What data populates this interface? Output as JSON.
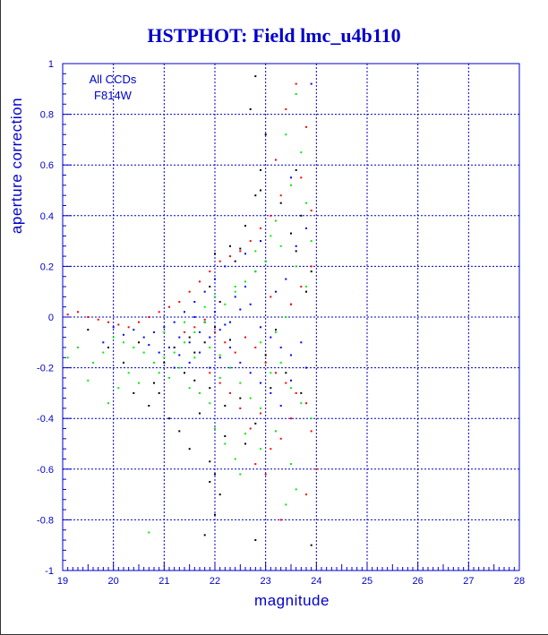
{
  "chart_data": {
    "type": "scatter",
    "title": "HSTPHOT: Field lmc_u4b110",
    "xlabel": "magnitude",
    "ylabel": "aperture correction",
    "xlim": [
      19,
      28
    ],
    "ylim": [
      -1,
      1
    ],
    "x_ticks": [
      "19",
      "20",
      "21",
      "22",
      "23",
      "24",
      "25",
      "26",
      "27",
      "28"
    ],
    "y_ticks": [
      "1",
      "0.8",
      "0.6",
      "0.4",
      "0.2",
      "0",
      "-0.2",
      "-0.4",
      "-0.6",
      "-0.8",
      "-1"
    ],
    "grid": true,
    "annotations": [
      "All CCDs",
      "F814W"
    ],
    "colors": {
      "axis": "#0000cc",
      "grid": "#0000cc",
      "text": "#0000cc"
    },
    "series": [
      {
        "color": "#000000",
        "points": [
          [
            22.8,
            0.95
          ],
          [
            22.7,
            0.82
          ],
          [
            23.0,
            0.72
          ],
          [
            22.9,
            0.58
          ],
          [
            22.9,
            0.5
          ],
          [
            22.8,
            0.48
          ],
          [
            23.3,
            0.45
          ],
          [
            22.6,
            0.36
          ],
          [
            23.5,
            0.33
          ],
          [
            22.3,
            0.28
          ],
          [
            22.5,
            0.27
          ],
          [
            23.6,
            0.26
          ],
          [
            22.0,
            0.25
          ],
          [
            22.4,
            0.22
          ],
          [
            21.9,
            0.12
          ],
          [
            22.1,
            0.06
          ],
          [
            21.8,
            -0.02
          ],
          [
            21.5,
            -0.08
          ],
          [
            21.2,
            -0.12
          ],
          [
            21.0,
            -0.18
          ],
          [
            21.4,
            -0.22
          ],
          [
            21.6,
            -0.25
          ],
          [
            21.9,
            -0.28
          ],
          [
            20.8,
            -0.26
          ],
          [
            20.9,
            -0.3
          ],
          [
            20.7,
            -0.35
          ],
          [
            21.1,
            -0.4
          ],
          [
            21.3,
            -0.45
          ],
          [
            21.7,
            -0.38
          ],
          [
            22.2,
            -0.35
          ],
          [
            22.5,
            -0.32
          ],
          [
            22.8,
            -0.42
          ],
          [
            23.1,
            -0.28
          ],
          [
            23.4,
            -0.22
          ],
          [
            23.7,
            -0.3
          ],
          [
            21.5,
            -0.52
          ],
          [
            21.9,
            -0.57
          ],
          [
            22.0,
            -0.62
          ],
          [
            21.9,
            -0.65
          ],
          [
            22.1,
            -0.7
          ],
          [
            22.0,
            -0.78
          ],
          [
            21.8,
            -0.86
          ],
          [
            22.8,
            -0.88
          ],
          [
            23.9,
            -0.9
          ],
          [
            22.2,
            -0.47
          ],
          [
            22.6,
            -0.5
          ],
          [
            19.5,
            -0.05
          ],
          [
            19.9,
            -0.12
          ],
          [
            20.2,
            -0.18
          ],
          [
            20.5,
            -0.1
          ],
          [
            20.4,
            -0.3
          ],
          [
            21.6,
            -0.14
          ],
          [
            21.8,
            -0.1
          ],
          [
            22.0,
            -0.04
          ],
          [
            22.3,
            -0.09
          ],
          [
            23.0,
            -0.15
          ],
          [
            23.2,
            -0.05
          ],
          [
            23.5,
            0.05
          ],
          [
            23.8,
            0.1
          ],
          [
            23.9,
            0.18
          ],
          [
            23.7,
            0.4
          ],
          [
            23.6,
            0.58
          ]
        ]
      },
      {
        "color": "#0000ff",
        "points": [
          [
            23.9,
            0.92
          ],
          [
            23.5,
            0.55
          ],
          [
            23.2,
            0.38
          ],
          [
            22.9,
            0.3
          ],
          [
            22.6,
            0.25
          ],
          [
            22.2,
            0.2
          ],
          [
            22.0,
            0.15
          ],
          [
            21.8,
            0.1
          ],
          [
            21.6,
            0.06
          ],
          [
            21.4,
            0.02
          ],
          [
            21.2,
            -0.02
          ],
          [
            21.0,
            -0.04
          ],
          [
            20.8,
            -0.06
          ],
          [
            20.6,
            -0.08
          ],
          [
            20.4,
            -0.05
          ],
          [
            20.2,
            -0.07
          ],
          [
            20.0,
            -0.04
          ],
          [
            19.8,
            -0.1
          ],
          [
            21.3,
            -0.08
          ],
          [
            21.5,
            -0.1
          ],
          [
            21.7,
            -0.06
          ],
          [
            21.9,
            -0.08
          ],
          [
            22.1,
            -0.05
          ],
          [
            22.3,
            -0.02
          ],
          [
            22.5,
            0.03
          ],
          [
            22.7,
            0.05
          ],
          [
            22.9,
            -0.04
          ],
          [
            23.1,
            -0.08
          ],
          [
            23.3,
            -0.12
          ],
          [
            23.5,
            -0.15
          ],
          [
            23.7,
            -0.1
          ],
          [
            21.1,
            -0.12
          ],
          [
            21.3,
            -0.15
          ],
          [
            21.5,
            -0.18
          ],
          [
            21.7,
            -0.14
          ],
          [
            21.9,
            -0.2
          ],
          [
            22.1,
            -0.16
          ],
          [
            22.3,
            -0.12
          ],
          [
            22.5,
            -0.18
          ],
          [
            22.7,
            -0.22
          ],
          [
            22.9,
            -0.26
          ],
          [
            23.1,
            -0.3
          ],
          [
            23.3,
            -0.35
          ],
          [
            23.5,
            -0.25
          ],
          [
            23.8,
            -0.2
          ],
          [
            21.6,
            0.0
          ],
          [
            21.8,
            -0.02
          ],
          [
            22.0,
            0.02
          ],
          [
            22.2,
            -0.03
          ],
          [
            22.4,
            0.08
          ],
          [
            22.6,
            0.12
          ],
          [
            22.8,
            0.18
          ],
          [
            23.0,
            0.22
          ],
          [
            23.2,
            0.1
          ],
          [
            23.4,
            0.15
          ],
          [
            23.6,
            0.28
          ],
          [
            23.8,
            0.35
          ],
          [
            21.2,
            -0.2
          ],
          [
            20.9,
            -0.14
          ],
          [
            20.7,
            -0.11
          ]
        ]
      },
      {
        "color": "#ff0000",
        "points": [
          [
            23.6,
            0.92
          ],
          [
            23.4,
            0.82
          ],
          [
            23.8,
            0.75
          ],
          [
            23.2,
            0.62
          ],
          [
            23.7,
            0.55
          ],
          [
            23.3,
            0.48
          ],
          [
            23.9,
            0.42
          ],
          [
            23.1,
            0.4
          ],
          [
            22.9,
            0.35
          ],
          [
            22.7,
            0.3
          ],
          [
            22.5,
            0.26
          ],
          [
            22.3,
            0.24
          ],
          [
            22.1,
            0.22
          ],
          [
            21.9,
            0.18
          ],
          [
            21.7,
            0.14
          ],
          [
            21.5,
            0.1
          ],
          [
            21.3,
            0.06
          ],
          [
            21.1,
            0.04
          ],
          [
            20.9,
            0.02
          ],
          [
            20.7,
            0.0
          ],
          [
            20.5,
            -0.02
          ],
          [
            20.3,
            -0.04
          ],
          [
            20.1,
            -0.03
          ],
          [
            19.9,
            -0.02
          ],
          [
            19.7,
            -0.01
          ],
          [
            19.5,
            0.0
          ],
          [
            19.3,
            0.02
          ],
          [
            19.1,
            0.01
          ],
          [
            21.4,
            -0.06
          ],
          [
            21.6,
            -0.04
          ],
          [
            21.8,
            -0.01
          ],
          [
            22.0,
            -0.06
          ],
          [
            22.2,
            -0.1
          ],
          [
            22.4,
            -0.14
          ],
          [
            22.6,
            -0.08
          ],
          [
            22.8,
            -0.12
          ],
          [
            23.0,
            -0.18
          ],
          [
            23.2,
            -0.22
          ],
          [
            23.4,
            -0.26
          ],
          [
            23.6,
            -0.3
          ],
          [
            23.8,
            -0.34
          ],
          [
            23.9,
            -0.45
          ],
          [
            23.5,
            -0.4
          ],
          [
            23.3,
            -0.48
          ],
          [
            23.1,
            -0.52
          ],
          [
            22.9,
            -0.38
          ],
          [
            22.7,
            -0.44
          ],
          [
            22.5,
            -0.36
          ],
          [
            22.3,
            -0.3
          ],
          [
            22.1,
            -0.26
          ],
          [
            21.9,
            -0.22
          ],
          [
            23.0,
            -0.62
          ],
          [
            22.8,
            -0.58
          ],
          [
            23.3,
            -0.8
          ],
          [
            24.0,
            -0.6
          ],
          [
            23.8,
            -0.7
          ],
          [
            23.5,
            0.05
          ],
          [
            23.7,
            0.12
          ],
          [
            23.9,
            0.2
          ],
          [
            23.1,
            0.08
          ]
        ]
      },
      {
        "color": "#00ee00",
        "points": [
          [
            23.6,
            0.88
          ],
          [
            23.4,
            0.72
          ],
          [
            23.7,
            0.65
          ],
          [
            23.5,
            0.52
          ],
          [
            23.8,
            0.45
          ],
          [
            23.2,
            0.38
          ],
          [
            23.9,
            0.3
          ],
          [
            23.0,
            0.22
          ],
          [
            22.8,
            0.18
          ],
          [
            22.6,
            0.14
          ],
          [
            22.4,
            0.1
          ],
          [
            22.2,
            0.05
          ],
          [
            21.8,
            -0.02
          ],
          [
            21.6,
            -0.06
          ],
          [
            21.4,
            -0.1
          ],
          [
            21.2,
            -0.14
          ],
          [
            21.0,
            -0.16
          ],
          [
            20.8,
            -0.18
          ],
          [
            20.6,
            -0.14
          ],
          [
            20.4,
            -0.12
          ],
          [
            20.2,
            -0.1
          ],
          [
            20.0,
            -0.08
          ],
          [
            19.8,
            -0.14
          ],
          [
            19.6,
            -0.18
          ],
          [
            19.5,
            -0.25
          ],
          [
            19.3,
            -0.12
          ],
          [
            19.1,
            -0.16
          ],
          [
            20.3,
            -0.22
          ],
          [
            20.5,
            -0.26
          ],
          [
            20.9,
            -0.22
          ],
          [
            21.1,
            -0.24
          ],
          [
            21.3,
            -0.2
          ],
          [
            21.5,
            -0.28
          ],
          [
            21.7,
            -0.3
          ],
          [
            21.9,
            -0.34
          ],
          [
            22.1,
            -0.24
          ],
          [
            22.3,
            -0.2
          ],
          [
            22.5,
            -0.26
          ],
          [
            22.7,
            -0.32
          ],
          [
            22.9,
            -0.36
          ],
          [
            23.1,
            -0.22
          ],
          [
            23.3,
            -0.18
          ],
          [
            23.5,
            -0.28
          ],
          [
            23.7,
            -0.34
          ],
          [
            23.9,
            -0.4
          ],
          [
            22.0,
            -0.44
          ],
          [
            22.2,
            -0.5
          ],
          [
            22.4,
            -0.56
          ],
          [
            22.6,
            -0.46
          ],
          [
            22.9,
            -0.52
          ],
          [
            23.2,
            -0.45
          ],
          [
            23.5,
            -0.58
          ],
          [
            23.6,
            -0.68
          ],
          [
            23.4,
            -0.74
          ],
          [
            22.5,
            -0.62
          ],
          [
            20.7,
            -0.85
          ],
          [
            19.9,
            -0.34
          ],
          [
            20.1,
            -0.28
          ],
          [
            21.0,
            -0.06
          ],
          [
            21.4,
            -0.02
          ],
          [
            21.8,
            0.04
          ],
          [
            22.0,
            0.08
          ],
          [
            22.4,
            0.12
          ],
          [
            22.8,
            0.26
          ],
          [
            23.1,
            0.32
          ],
          [
            23.3,
            0.28
          ],
          [
            23.6,
            0.2
          ],
          [
            23.8,
            0.12
          ],
          [
            23.4,
            0.0
          ],
          [
            23.2,
            -0.06
          ],
          [
            22.9,
            -0.1
          ],
          [
            21.6,
            -0.16
          ],
          [
            21.9,
            -0.12
          ],
          [
            22.1,
            -0.15
          ]
        ]
      }
    ]
  }
}
